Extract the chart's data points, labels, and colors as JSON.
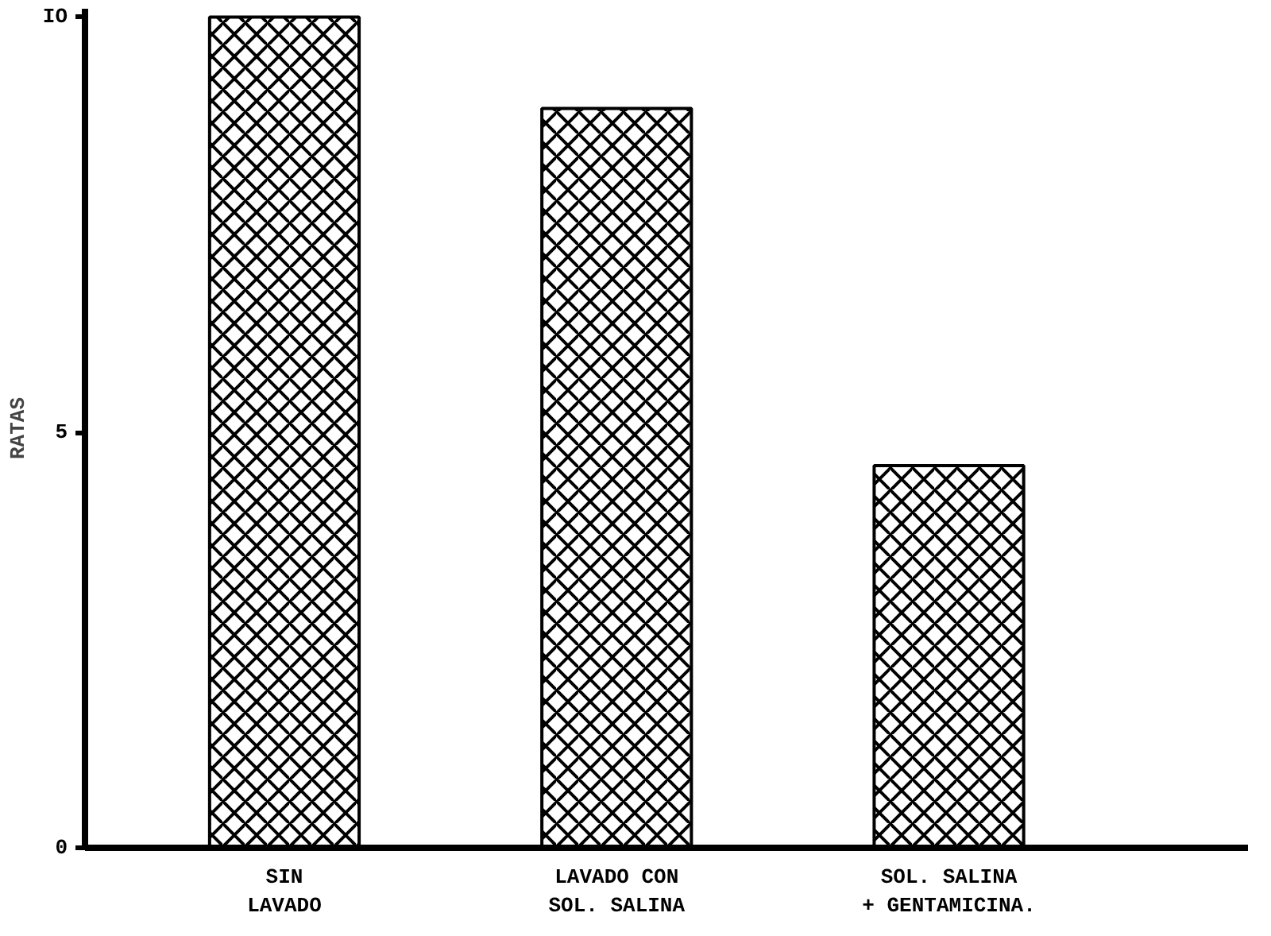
{
  "chart_data": {
    "type": "bar",
    "ylabel": "RATAS",
    "categories": [
      "SIN\nLAVADO",
      "LAVADO CON\nSOL. SALINA",
      "SOL. SALINA\n+ GENTAMICINA."
    ],
    "values": [
      10,
      8.9,
      4.6
    ],
    "color": "#000000",
    "ylim": [
      0,
      10.1
    ],
    "yticks": [
      {
        "value": 0,
        "label": "0"
      },
      {
        "value": 5,
        "label": "5"
      },
      {
        "value": 10,
        "label": "IO"
      }
    ],
    "grid": false
  }
}
